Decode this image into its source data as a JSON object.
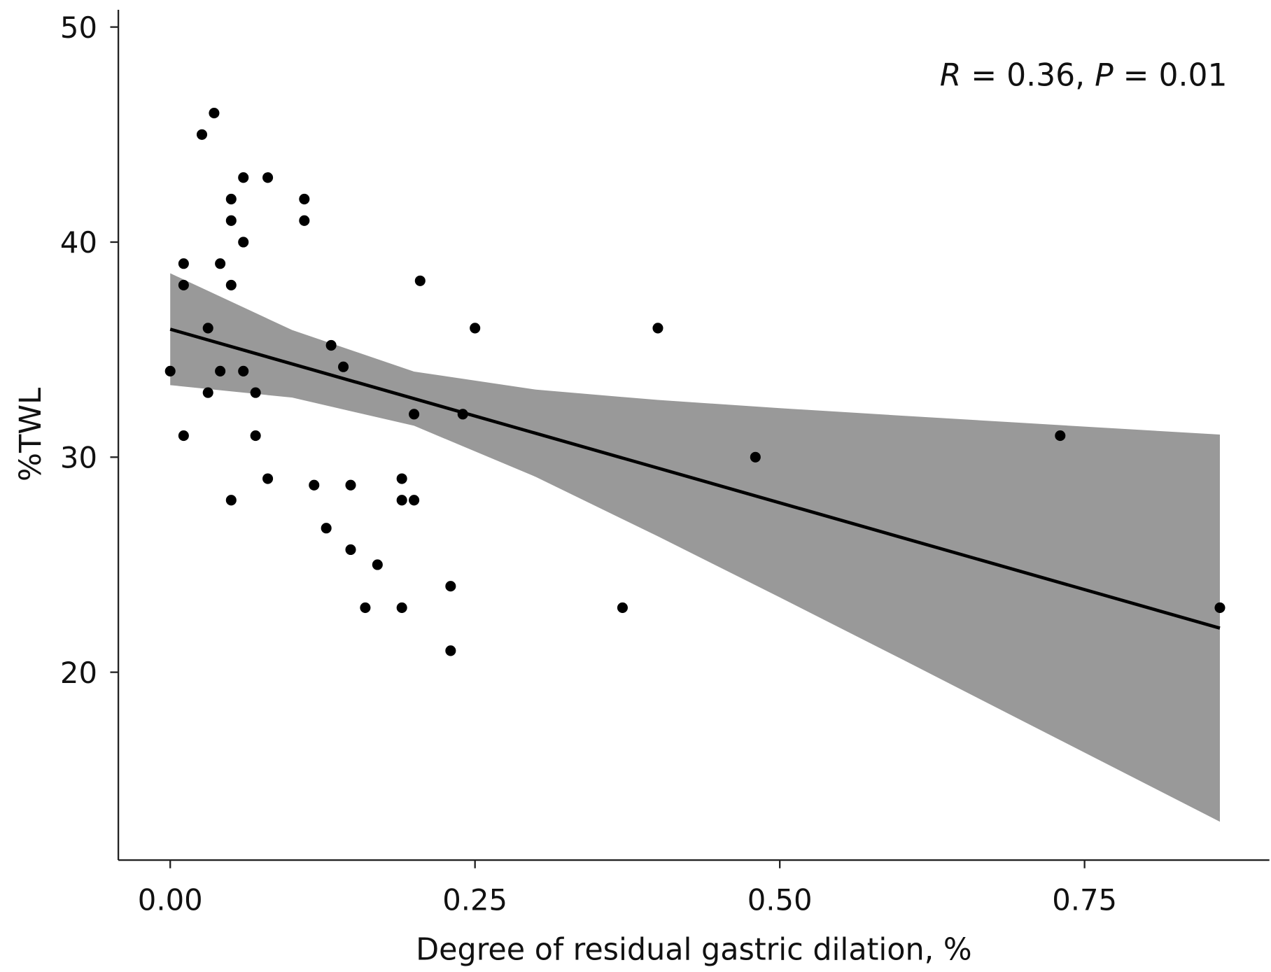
{
  "chart_data": {
    "type": "scatter",
    "title": "",
    "xlabel": "Degree of residual gastric dilation, %",
    "ylabel": "%TWL",
    "xlim": [
      -0.085,
      0.9
    ],
    "ylim": [
      10.8,
      50.8
    ],
    "xticks": [
      0.0,
      0.25,
      0.5,
      0.75
    ],
    "xtick_labels": [
      "0.00",
      "0.25",
      "0.50",
      "0.75"
    ],
    "yticks": [
      20,
      30,
      40,
      50
    ],
    "ytick_labels": [
      "20",
      "30",
      "40",
      "50"
    ],
    "grid": false,
    "annotation": {
      "r_label": "R",
      "r_text": " = 0.36, ",
      "p_label": "P",
      "p_text": " = 0.01"
    },
    "point_color": "#000000",
    "band_color": "#999999",
    "line_color": "#000000",
    "points": [
      [
        0.0,
        34
      ],
      [
        0.011,
        39
      ],
      [
        0.011,
        38
      ],
      [
        0.011,
        31
      ],
      [
        0.026,
        45
      ],
      [
        0.036,
        46
      ],
      [
        0.031,
        36
      ],
      [
        0.031,
        33
      ],
      [
        0.041,
        39
      ],
      [
        0.041,
        34
      ],
      [
        0.05,
        42
      ],
      [
        0.05,
        41
      ],
      [
        0.05,
        38
      ],
      [
        0.05,
        28
      ],
      [
        0.06,
        43
      ],
      [
        0.06,
        40
      ],
      [
        0.06,
        34
      ],
      [
        0.07,
        33
      ],
      [
        0.07,
        31
      ],
      [
        0.08,
        43
      ],
      [
        0.08,
        29
      ],
      [
        0.11,
        42
      ],
      [
        0.11,
        41
      ],
      [
        0.118,
        28.7
      ],
      [
        0.128,
        26.7
      ],
      [
        0.132,
        35.2
      ],
      [
        0.142,
        34.2
      ],
      [
        0.148,
        28.7
      ],
      [
        0.148,
        25.7
      ],
      [
        0.16,
        23
      ],
      [
        0.17,
        25
      ],
      [
        0.19,
        29
      ],
      [
        0.19,
        28
      ],
      [
        0.19,
        23
      ],
      [
        0.2,
        32
      ],
      [
        0.2,
        28
      ],
      [
        0.205,
        38.2
      ],
      [
        0.23,
        24
      ],
      [
        0.23,
        21
      ],
      [
        0.24,
        32
      ],
      [
        0.25,
        36
      ],
      [
        0.371,
        23
      ],
      [
        0.4,
        36
      ],
      [
        0.48,
        30
      ],
      [
        0.73,
        31
      ],
      [
        0.861,
        23
      ]
    ],
    "fit_line": [
      [
        0.0,
        35.95
      ],
      [
        0.861,
        22.05
      ]
    ],
    "confidence_band": [
      [
        0.0,
        33.35,
        38.55
      ],
      [
        0.1,
        32.77,
        35.91
      ],
      [
        0.2,
        31.46,
        33.98
      ],
      [
        0.3,
        29.08,
        33.14
      ],
      [
        0.4,
        26.32,
        32.66
      ],
      [
        0.5,
        23.48,
        32.28
      ],
      [
        0.6,
        20.61,
        31.93
      ],
      [
        0.7,
        17.71,
        31.59
      ],
      [
        0.861,
        13.05,
        31.05
      ]
    ]
  }
}
